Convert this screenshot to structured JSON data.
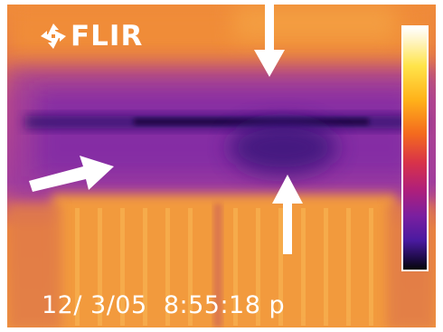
{
  "image": {
    "brand": "FLIR",
    "timestamp": "12/ 3/05  8:55:18 p",
    "palette": {
      "hot": "#ffffff",
      "warm": "#ffe44a",
      "mid": "#e8803a",
      "cool": "#b01f7a",
      "cold": "#2a0a6a",
      "coldest": "#060608"
    },
    "icons": [
      "flir-logo-icon",
      "arrow-down-icon",
      "arrow-up-icon",
      "arrow-right-icon"
    ]
  }
}
